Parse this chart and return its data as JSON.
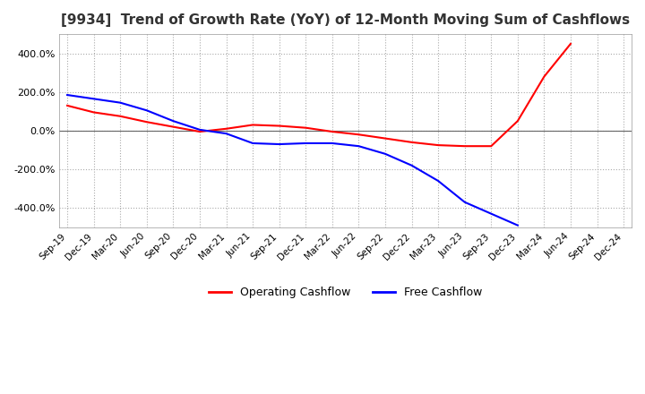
{
  "title": "[9934]  Trend of Growth Rate (YoY) of 12-Month Moving Sum of Cashflows",
  "title_fontsize": 11,
  "background_color": "#ffffff",
  "grid_color": "#aaaaaa",
  "ylim": [
    -500,
    500
  ],
  "yticks": [
    -400,
    -200,
    0,
    200,
    400
  ],
  "legend_labels": [
    "Operating Cashflow",
    "Free Cashflow"
  ],
  "legend_colors": [
    "#ff0000",
    "#0000ff"
  ],
  "x_labels": [
    "Sep-19",
    "Dec-19",
    "Mar-20",
    "Jun-20",
    "Sep-20",
    "Dec-20",
    "Mar-21",
    "Jun-21",
    "Sep-21",
    "Dec-21",
    "Mar-22",
    "Jun-22",
    "Sep-22",
    "Dec-22",
    "Mar-23",
    "Jun-23",
    "Sep-23",
    "Dec-23",
    "Mar-24",
    "Jun-24",
    "Sep-24",
    "Dec-24"
  ],
  "operating_cashflow": [
    130,
    95,
    75,
    45,
    20,
    -5,
    10,
    30,
    25,
    15,
    -5,
    -20,
    -40,
    -60,
    -75,
    -80,
    -80,
    50,
    280,
    450,
    null,
    null
  ],
  "free_cashflow": [
    185,
    165,
    145,
    105,
    50,
    5,
    -15,
    -65,
    -70,
    -65,
    -65,
    -80,
    -120,
    -180,
    -260,
    -370,
    -430,
    -490,
    null,
    null,
    null,
    null
  ]
}
